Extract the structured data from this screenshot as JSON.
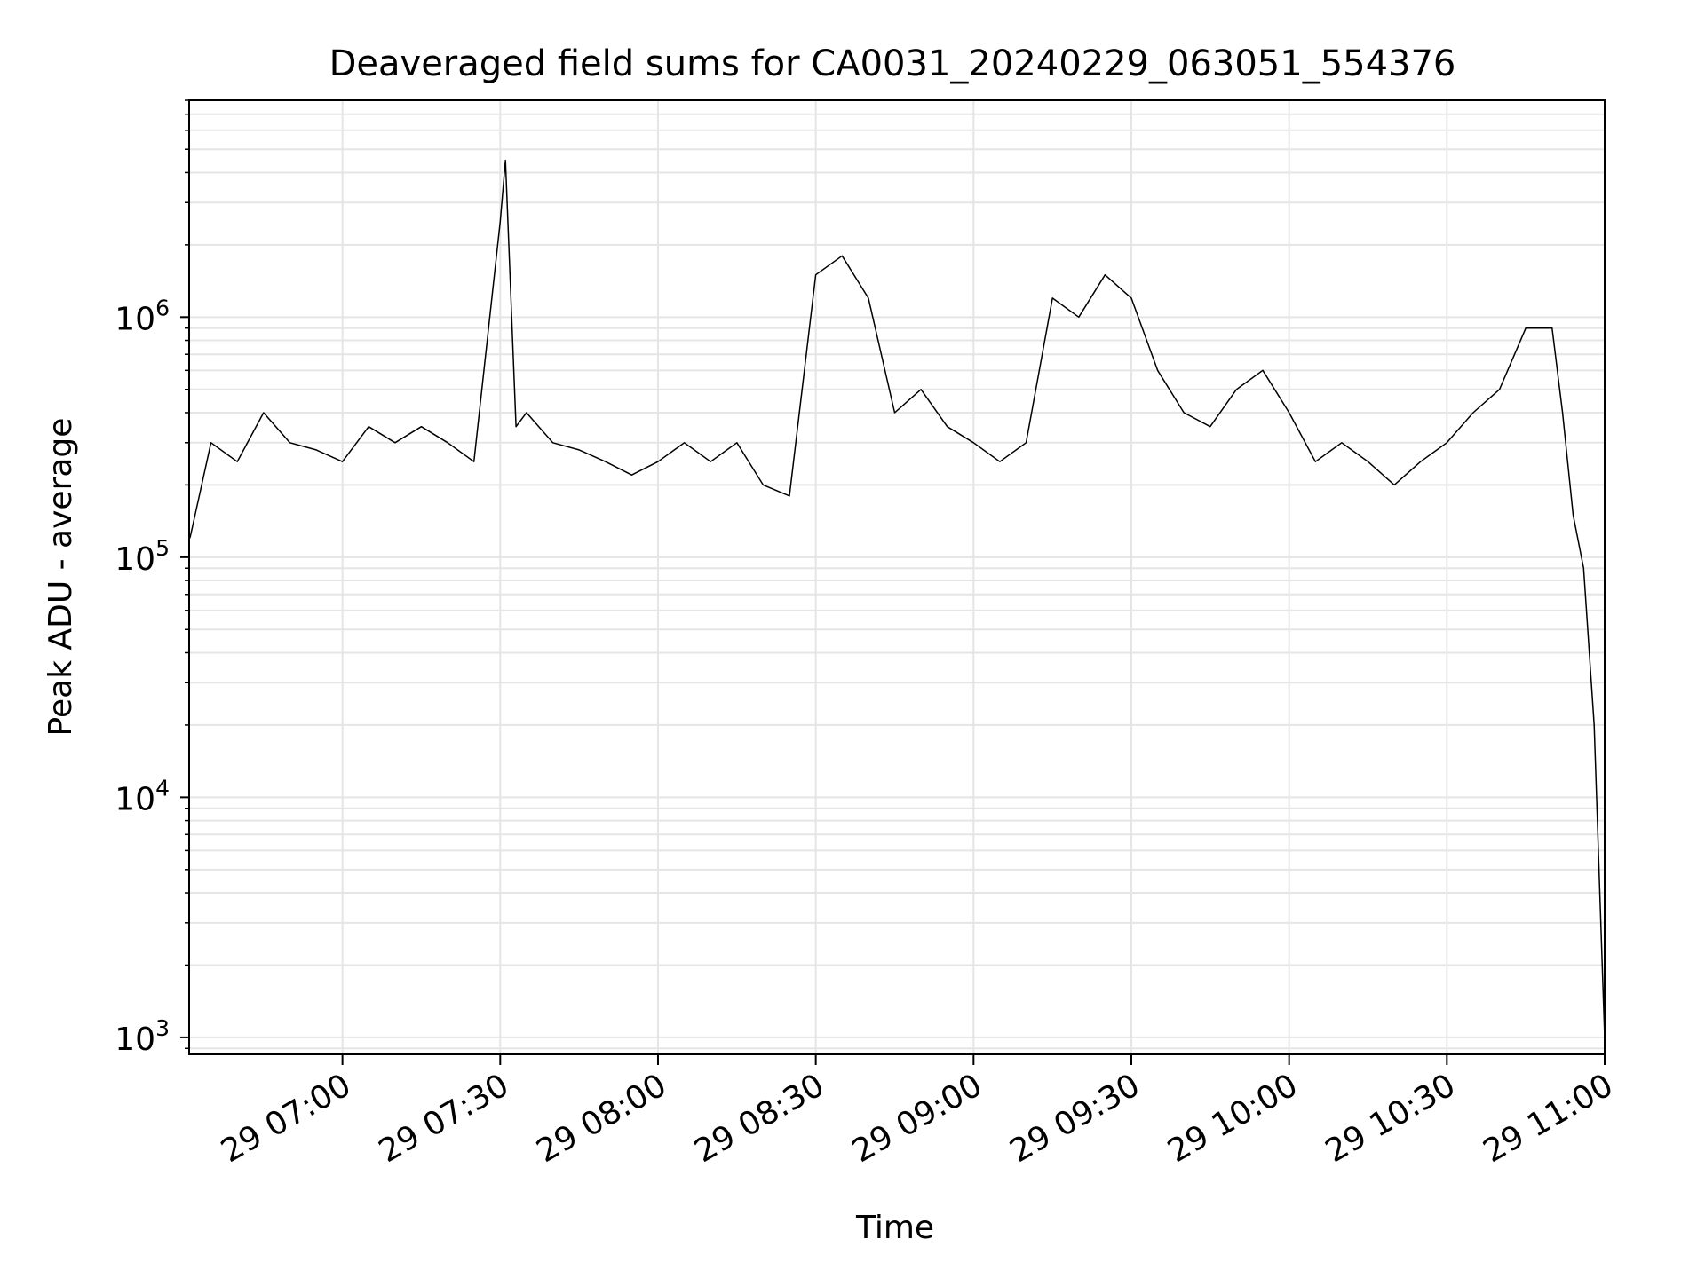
{
  "chart_data": {
    "type": "line",
    "title": "Deaveraged field sums for CA0031_20240229_063051_554376",
    "xlabel": "Time",
    "ylabel": "Peak ADU - average",
    "y_scale": "log",
    "ylim": [
      850,
      8000000
    ],
    "xlim": [
      "2024-02-29 06:30:51",
      "2024-02-29 11:00:00"
    ],
    "grid": true,
    "x_ticks": [
      "29 07:00",
      "29 07:30",
      "29 08:00",
      "29 08:30",
      "29 09:00",
      "29 09:30",
      "29 10:00",
      "29 10:30",
      "29 11:00"
    ],
    "y_ticks": [
      {
        "base": "10",
        "exp": "3",
        "value": 1000
      },
      {
        "base": "10",
        "exp": "4",
        "value": 10000
      },
      {
        "base": "10",
        "exp": "5",
        "value": 100000
      },
      {
        "base": "10",
        "exp": "6",
        "value": 1000000
      }
    ],
    "line_color": "#000000",
    "grid_color": "#e5e5e5",
    "series": [
      {
        "x": [
          "2024-02-29 06:31",
          "2024-02-29 06:35",
          "2024-02-29 06:40",
          "2024-02-29 06:45",
          "2024-02-29 06:50",
          "2024-02-29 06:55",
          "2024-02-29 07:00",
          "2024-02-29 07:05",
          "2024-02-29 07:10",
          "2024-02-29 07:15",
          "2024-02-29 07:20",
          "2024-02-29 07:25",
          "2024-02-29 07:30",
          "2024-02-29 07:31",
          "2024-02-29 07:33",
          "2024-02-29 07:35",
          "2024-02-29 07:40",
          "2024-02-29 07:45",
          "2024-02-29 07:50",
          "2024-02-29 07:55",
          "2024-02-29 08:00",
          "2024-02-29 08:05",
          "2024-02-29 08:10",
          "2024-02-29 08:15",
          "2024-02-29 08:20",
          "2024-02-29 08:25",
          "2024-02-29 08:30",
          "2024-02-29 08:35",
          "2024-02-29 08:40",
          "2024-02-29 08:45",
          "2024-02-29 08:50",
          "2024-02-29 08:55",
          "2024-02-29 09:00",
          "2024-02-29 09:05",
          "2024-02-29 09:10",
          "2024-02-29 09:15",
          "2024-02-29 09:20",
          "2024-02-29 09:25",
          "2024-02-29 09:30",
          "2024-02-29 09:35",
          "2024-02-29 09:40",
          "2024-02-29 09:45",
          "2024-02-29 09:50",
          "2024-02-29 09:55",
          "2024-02-29 10:00",
          "2024-02-29 10:05",
          "2024-02-29 10:10",
          "2024-02-29 10:15",
          "2024-02-29 10:20",
          "2024-02-29 10:25",
          "2024-02-29 10:30",
          "2024-02-29 10:35",
          "2024-02-29 10:40",
          "2024-02-29 10:45",
          "2024-02-29 10:50",
          "2024-02-29 10:52",
          "2024-02-29 10:54",
          "2024-02-29 10:56",
          "2024-02-29 10:58",
          "2024-02-29 11:00"
        ],
        "y": [
          120000,
          300000,
          250000,
          400000,
          300000,
          280000,
          250000,
          350000,
          300000,
          350000,
          300000,
          250000,
          2500000,
          4500000,
          350000,
          400000,
          300000,
          280000,
          250000,
          220000,
          250000,
          300000,
          250000,
          300000,
          200000,
          180000,
          1500000,
          1800000,
          1200000,
          400000,
          500000,
          350000,
          300000,
          250000,
          300000,
          1200000,
          1000000,
          1500000,
          1200000,
          600000,
          400000,
          350000,
          500000,
          600000,
          400000,
          250000,
          300000,
          250000,
          200000,
          250000,
          300000,
          400000,
          500000,
          900000,
          900000,
          400000,
          150000,
          90000,
          20000,
          1000
        ]
      }
    ]
  }
}
